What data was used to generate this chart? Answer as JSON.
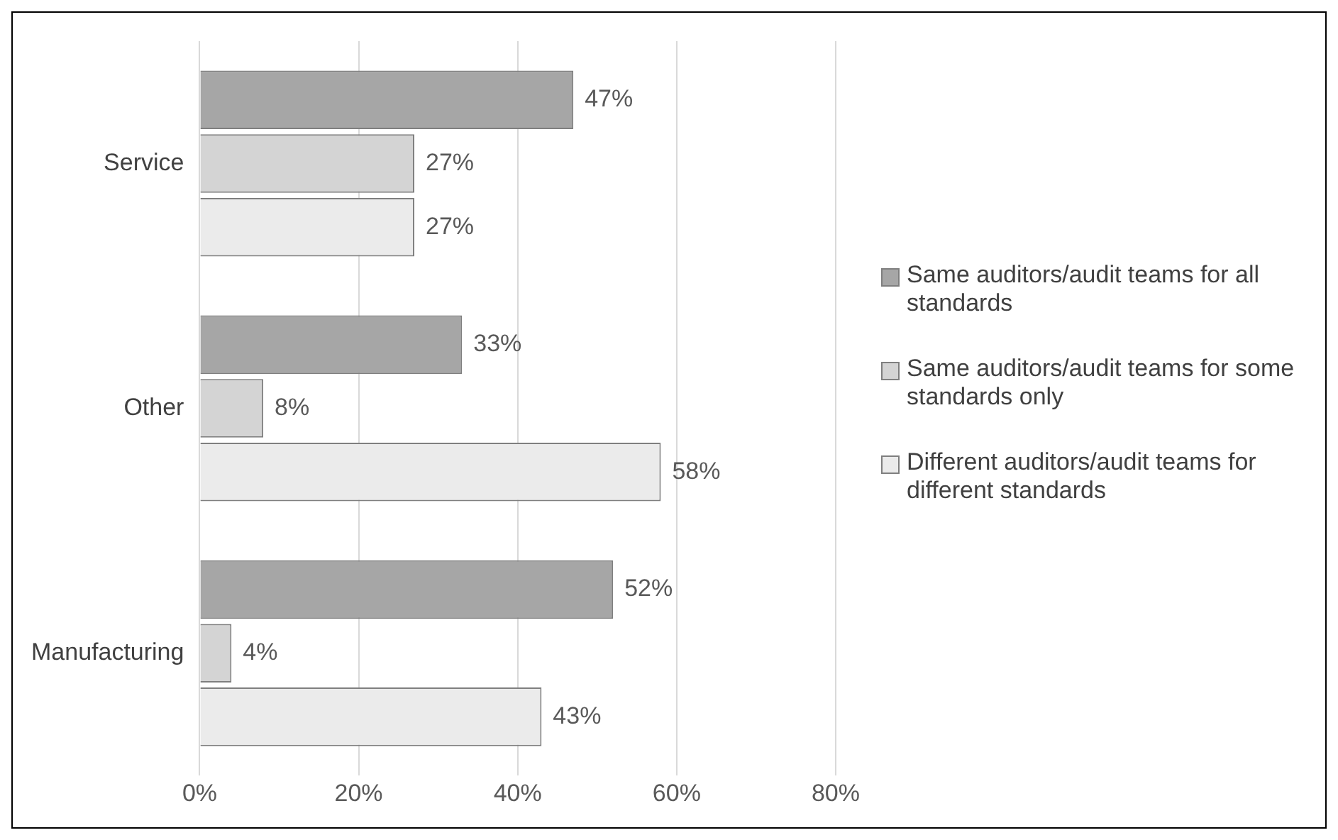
{
  "chart_data": {
    "type": "bar",
    "orientation": "horizontal",
    "categories": [
      "Service",
      "Other",
      "Manufacturing"
    ],
    "series": [
      {
        "name": "Same auditors/audit teams for all standards",
        "color": "#a6a6a6",
        "values": [
          47,
          33,
          52
        ],
        "value_labels": [
          "47%",
          "33%",
          "52%"
        ]
      },
      {
        "name": "Same auditors/audit teams for some standards only",
        "color": "#d4d4d4",
        "values": [
          27,
          8,
          4
        ],
        "value_labels": [
          "27%",
          "8%",
          "4%"
        ]
      },
      {
        "name": "Different auditors/audit teams for different standards",
        "color": "#ebebeb",
        "values": [
          27,
          58,
          43
        ],
        "value_labels": [
          "27%",
          "58%",
          "43%"
        ]
      }
    ],
    "xlim": [
      0,
      80
    ],
    "xticks": [
      {
        "value": 0,
        "label": "0%"
      },
      {
        "value": 20,
        "label": "20%"
      },
      {
        "value": 40,
        "label": "40%"
      },
      {
        "value": 60,
        "label": "60%"
      },
      {
        "value": 80,
        "label": "80%"
      }
    ],
    "grid": "x",
    "legend": "right"
  }
}
